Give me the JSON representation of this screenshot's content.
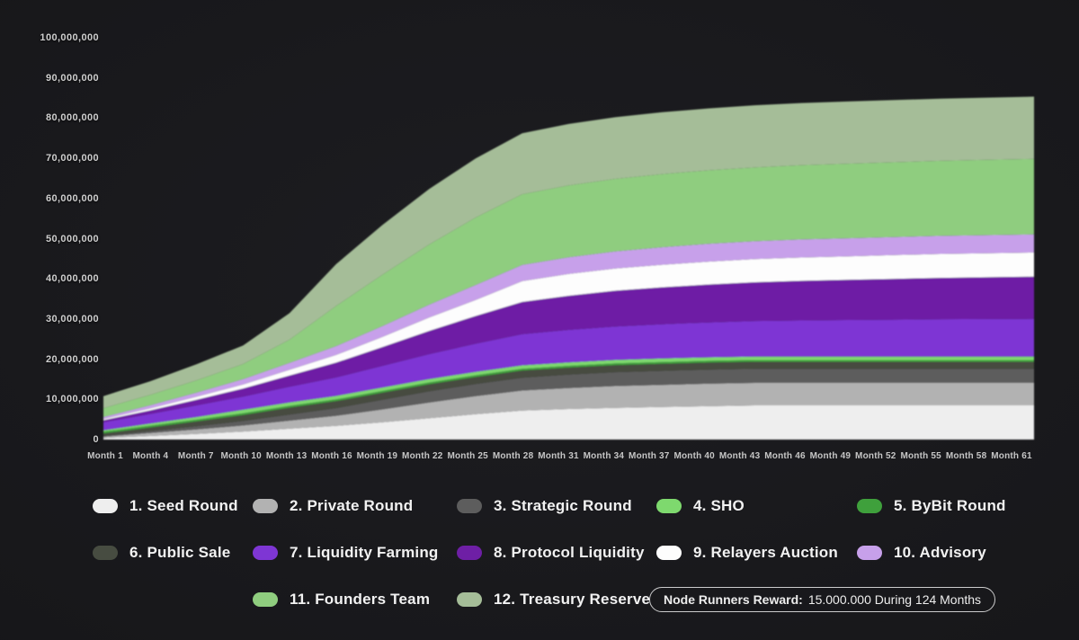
{
  "background": {
    "page_bg": "#17171a"
  },
  "axes": {
    "y_ticks": [
      {
        "value_millions": 100,
        "label": "100,000,000"
      },
      {
        "value_millions": 90,
        "label": "90,000,000"
      },
      {
        "value_millions": 80,
        "label": "80,000,000"
      },
      {
        "value_millions": 70,
        "label": "70,000,000"
      },
      {
        "value_millions": 60,
        "label": "60,000,000"
      },
      {
        "value_millions": 50,
        "label": "50,000,000"
      },
      {
        "value_millions": 40,
        "label": "40,000,000"
      },
      {
        "value_millions": 30,
        "label": "30,000,000"
      },
      {
        "value_millions": 20,
        "label": "20,000,000"
      },
      {
        "value_millions": 10,
        "label": "10,000,000"
      },
      {
        "value_millions": 0,
        "label": "0"
      }
    ],
    "x_ticks": [
      "Month 1",
      "Month 4",
      "Month 7",
      "Month 10",
      "Month 13",
      "Month 16",
      "Month 19",
      "Month 22",
      "Month 25",
      "Month 28",
      "Month 31",
      "Month 34",
      "Month 37",
      "Month 40",
      "Month 43",
      "Month 46",
      "Month 49",
      "Month 52",
      "Month 55",
      "Month 58",
      "Month 61"
    ]
  },
  "chart_data": {
    "type": "area",
    "stacked": true,
    "title": "",
    "xlabel": "",
    "ylabel": "",
    "unit": "tokens (values in millions)",
    "ylim_millions": [
      0,
      100
    ],
    "x_months": [
      1,
      4,
      7,
      10,
      13,
      16,
      19,
      22,
      25,
      28,
      31,
      34,
      37,
      40,
      43,
      46,
      49,
      52,
      55,
      58,
      61
    ],
    "grid": false,
    "legend_position": "bottom",
    "series": [
      {
        "num": 1,
        "name": "Seed Round",
        "legend_label": "1. Seed Round",
        "color": "#eeeeee",
        "values_millions": [
          0.4,
          0.9,
          1.4,
          2.0,
          2.7,
          3.4,
          4.3,
          5.3,
          6.3,
          7.2,
          7.6,
          7.9,
          8.1,
          8.3,
          8.5,
          8.5,
          8.5,
          8.5,
          8.5,
          8.5,
          8.5
        ]
      },
      {
        "num": 2,
        "name": "Private Round",
        "legend_label": "2. Private Round",
        "color": "#b2b2b2",
        "values_millions": [
          0.3,
          0.7,
          1.1,
          1.5,
          2.0,
          2.5,
          3.2,
          3.9,
          4.5,
          5.0,
          5.2,
          5.4,
          5.5,
          5.6,
          5.6,
          5.6,
          5.6,
          5.6,
          5.6,
          5.6,
          5.6
        ]
      },
      {
        "num": 3,
        "name": "Strategic Round",
        "legend_label": "3. Strategic Round",
        "color": "#5d5d5d",
        "values_millions": [
          0.2,
          0.5,
          0.8,
          1.1,
          1.5,
          1.9,
          2.4,
          2.8,
          3.0,
          3.2,
          3.35,
          3.45,
          3.5,
          3.5,
          3.5,
          3.5,
          3.5,
          3.5,
          3.5,
          3.5,
          3.5
        ]
      },
      {
        "num": 6,
        "name": "Public Sale",
        "legend_label": "6. Public Sale",
        "color": "#474c41",
        "values_millions": [
          0.6,
          0.9,
          1.2,
          1.5,
          1.75,
          1.75,
          1.75,
          1.75,
          1.75,
          1.75,
          1.75,
          1.75,
          1.75,
          1.75,
          1.75,
          1.75,
          1.75,
          1.75,
          1.75,
          1.75,
          1.75
        ]
      },
      {
        "num": 5,
        "name": "ByBit Round",
        "legend_label": "5. ByBit Round",
        "color": "#3fa03c",
        "values_millions": [
          0.45,
          0.45,
          0.45,
          0.45,
          0.45,
          0.45,
          0.45,
          0.45,
          0.45,
          0.45,
          0.45,
          0.45,
          0.45,
          0.45,
          0.45,
          0.45,
          0.45,
          0.45,
          0.45,
          0.45,
          0.45
        ]
      },
      {
        "num": 4,
        "name": "SHO",
        "legend_label": "4. SHO",
        "color": "#7ed96e",
        "values_millions": [
          0.35,
          0.5,
          0.65,
          0.85,
          0.85,
          0.85,
          0.85,
          0.85,
          0.85,
          0.85,
          0.85,
          0.85,
          0.85,
          0.85,
          0.85,
          0.85,
          0.85,
          0.85,
          0.85,
          0.85,
          0.85
        ]
      },
      {
        "num": 7,
        "name": "Liquidity Farming",
        "legend_label": "7. Liquidity Farming",
        "color": "#7e36d4",
        "values_millions": [
          2.0,
          2.4,
          2.9,
          3.3,
          3.9,
          4.6,
          5.4,
          6.2,
          7.0,
          7.8,
          8.1,
          8.35,
          8.55,
          8.7,
          8.85,
          9.0,
          9.1,
          9.2,
          9.3,
          9.35,
          9.4
        ]
      },
      {
        "num": 8,
        "name": "Protocol Liquidity",
        "legend_label": "8. Protocol Liquidity",
        "color": "#6e1fa5",
        "values_millions": [
          0.5,
          0.9,
          1.4,
          2.0,
          2.8,
          3.7,
          4.7,
          5.8,
          6.9,
          8.0,
          8.5,
          8.9,
          9.2,
          9.45,
          9.65,
          9.85,
          10.0,
          10.15,
          10.3,
          10.4,
          10.5
        ]
      },
      {
        "num": 9,
        "name": "Relayers Auction",
        "legend_label": "9. Relayers Auction",
        "color": "#fdfdfd",
        "values_millions": [
          0.3,
          0.5,
          0.75,
          1.0,
          1.4,
          1.9,
          2.5,
          3.3,
          4.0,
          5.2,
          5.4,
          5.5,
          5.6,
          5.68,
          5.74,
          5.8,
          5.85,
          5.9,
          5.94,
          5.97,
          6.0
        ]
      },
      {
        "num": 10,
        "name": "Advisory",
        "legend_label": "10. Advisory",
        "color": "#c7a0ea",
        "values_millions": [
          0.5,
          0.75,
          1.0,
          1.3,
          1.7,
          2.2,
          2.7,
          3.2,
          3.7,
          4.0,
          4.15,
          4.27,
          4.36,
          4.42,
          4.46,
          4.5,
          4.5,
          4.5,
          4.5,
          4.5,
          4.5
        ]
      },
      {
        "num": 11,
        "name": "Founders Team",
        "legend_label": "11. Founders Team",
        "color": "#8fcd7f",
        "values_millions": [
          2.2,
          2.6,
          3.1,
          3.8,
          5.8,
          10.0,
          12.8,
          15.0,
          16.8,
          17.6,
          17.9,
          18.05,
          18.2,
          18.3,
          18.4,
          18.5,
          18.56,
          18.62,
          18.68,
          18.74,
          18.8
        ]
      },
      {
        "num": 12,
        "name": "Treasury Reserve",
        "legend_label": "12. Treasury Reserve",
        "color": "#a5bd98",
        "values_millions": [
          3.0,
          3.4,
          4.0,
          4.6,
          6.6,
          10.4,
          12.4,
          13.8,
          14.7,
          15.2,
          15.3,
          15.35,
          15.4,
          15.42,
          15.44,
          15.46,
          15.47,
          15.48,
          15.49,
          15.5,
          15.5
        ]
      }
    ]
  },
  "reward": {
    "label": "Node Runners Reward:",
    "value": "15.000.000 During 124 Months"
  }
}
